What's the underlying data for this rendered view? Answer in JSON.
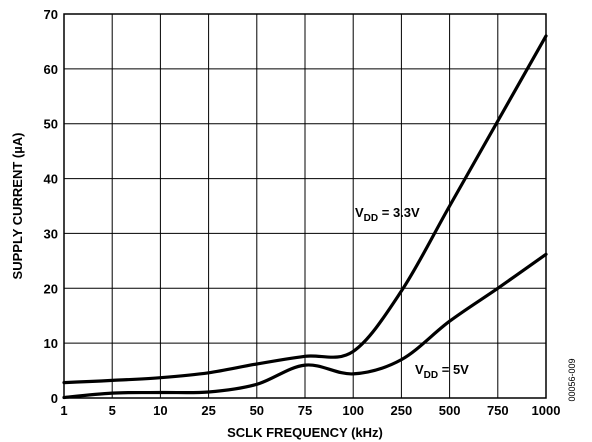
{
  "chart_data": {
    "type": "line",
    "title": "",
    "xlabel": "SCLK FREQUENCY (kHz)",
    "ylabel": "SUPPLY CURRENT (µA)",
    "x_tick_labels": [
      "1",
      "5",
      "10",
      "25",
      "50",
      "75",
      "100",
      "250",
      "500",
      "750",
      "1000"
    ],
    "y_ticks": [
      0,
      10,
      20,
      30,
      40,
      50,
      60,
      70
    ],
    "y_tick_labels": [
      "0",
      "10",
      "20",
      "30",
      "40",
      "50",
      "60",
      "70"
    ],
    "ylim": [
      0,
      70
    ],
    "x_axis_note": "categorical axis with equally spaced ticks",
    "grid": true,
    "legend": "none",
    "figure_code": "00056-009",
    "series": [
      {
        "name": "VDD = 3.3V",
        "label_main": "V",
        "label_sub": "DD",
        "label_rest": " = 3.3V",
        "x": [
          "1",
          "5",
          "10",
          "25",
          "50",
          "75",
          "100",
          "250",
          "500",
          "750",
          "1000"
        ],
        "y": [
          2.8,
          3.2,
          3.7,
          4.6,
          6.2,
          7.6,
          8.5,
          19.5,
          35.0,
          50.5,
          66.0
        ]
      },
      {
        "name": "VDD = 5V",
        "label_main": "V",
        "label_sub": "DD",
        "label_rest": " = 5V",
        "x": [
          "1",
          "5",
          "10",
          "25",
          "50",
          "75",
          "100",
          "250",
          "500",
          "750",
          "1000"
        ],
        "y": [
          0.1,
          0.9,
          1.0,
          1.1,
          2.5,
          6.0,
          4.4,
          7.0,
          14.0,
          20.0,
          26.2
        ]
      }
    ]
  }
}
